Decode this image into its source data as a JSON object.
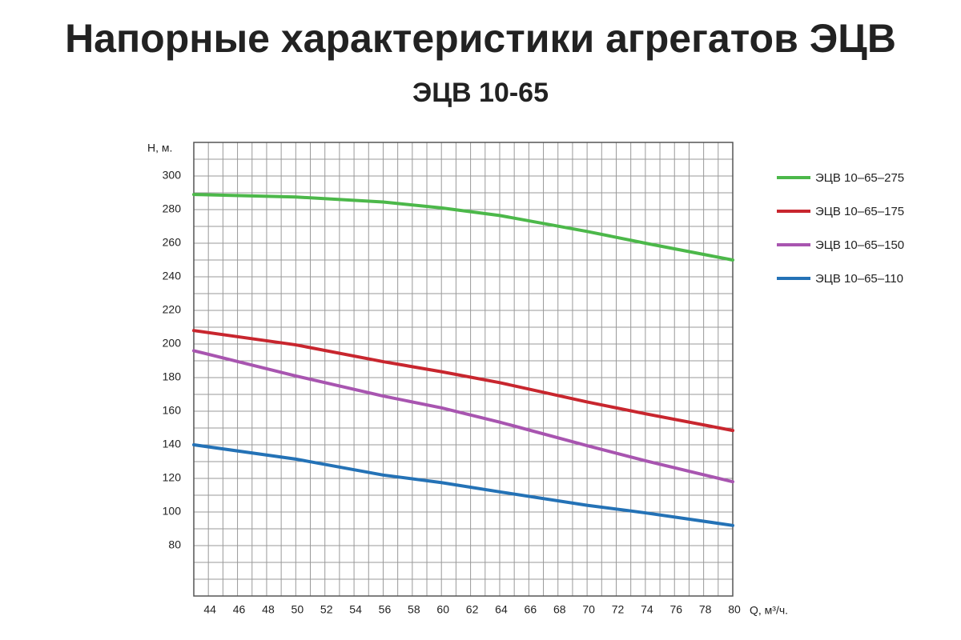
{
  "chart_data": {
    "type": "line",
    "title": "Напорные характеристики агрегатов ЭЦВ",
    "subtitle": "ЭЦВ 10-65",
    "y_label": "H, м.",
    "x_label": "Q, м³/ч.",
    "x": [
      43,
      50,
      56,
      60,
      64,
      70,
      74,
      80
    ],
    "series": [
      {
        "name": "ЭЦВ 10–65–275",
        "color": "#4cb84a",
        "values": [
          289,
          287.5,
          284.5,
          281,
          276.5,
          267,
          260,
          250
        ]
      },
      {
        "name": "ЭЦВ 10–65–175",
        "color": "#c8262e",
        "values": [
          208,
          199.5,
          189.5,
          183.5,
          177,
          165.5,
          158.5,
          148.5
        ]
      },
      {
        "name": "ЭЦВ 10–65–150",
        "color": "#a855b0",
        "values": [
          196,
          181,
          169,
          162,
          153.5,
          139.5,
          130.5,
          118
        ]
      },
      {
        "name": "ЭЦВ 10–65–110",
        "color": "#2472b6",
        "values": [
          140,
          131.5,
          122,
          117.5,
          112,
          104,
          99.5,
          92
        ]
      }
    ],
    "xlim": [
      43,
      80
    ],
    "ylim": [
      50,
      320
    ],
    "xticks": [
      44,
      46,
      48,
      50,
      52,
      54,
      56,
      58,
      60,
      62,
      64,
      66,
      68,
      70,
      72,
      74,
      76,
      78,
      80
    ],
    "yticks": [
      80,
      100,
      120,
      140,
      160,
      180,
      200,
      220,
      240,
      260,
      280,
      300
    ],
    "xgrid": [
      43,
      44,
      45,
      46,
      47,
      48,
      49,
      50,
      51,
      52,
      53,
      54,
      55,
      56,
      57,
      58,
      59,
      60,
      61,
      62,
      63,
      64,
      65,
      66,
      67,
      68,
      69,
      70,
      71,
      72,
      73,
      74,
      75,
      76,
      77,
      78,
      79,
      80
    ],
    "ygrid": [
      50,
      60,
      70,
      80,
      90,
      100,
      110,
      120,
      130,
      140,
      150,
      160,
      170,
      180,
      190,
      200,
      210,
      220,
      230,
      240,
      250,
      260,
      270,
      280,
      290,
      300,
      310,
      320
    ],
    "grid": true,
    "legend": "right"
  }
}
